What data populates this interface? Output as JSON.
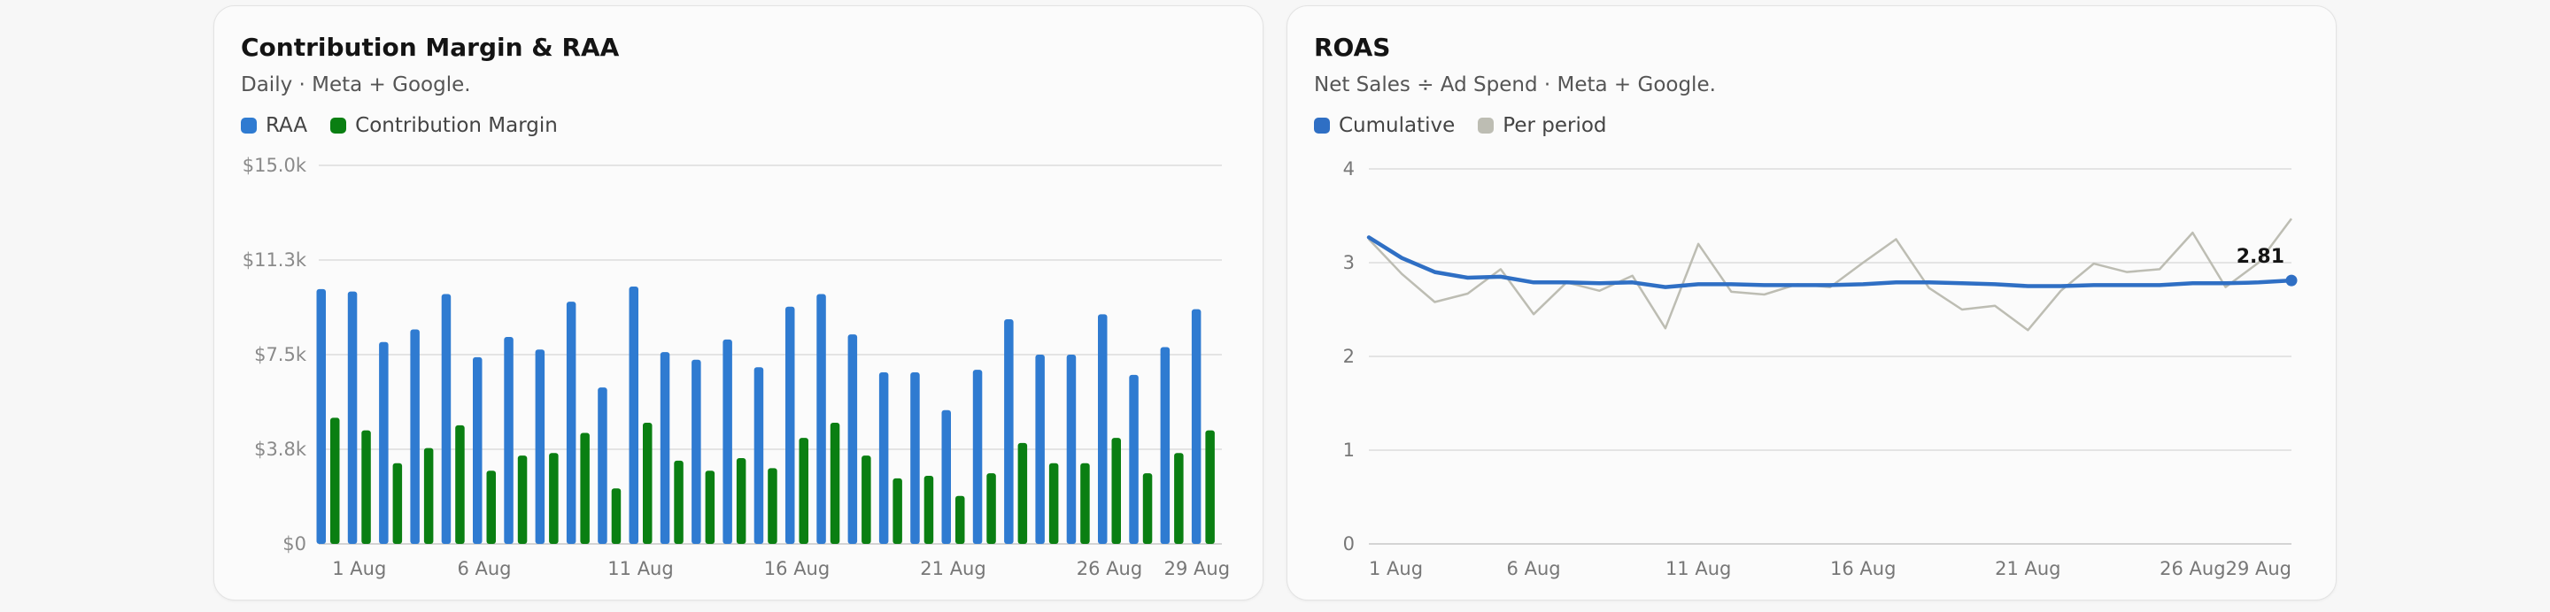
{
  "colors": {
    "raa": "#2f7bd1",
    "contribution_margin": "#0a7f12",
    "cumulative": "#2f6fc4",
    "per_period": "#bdbdb3",
    "grid": "#dcdcdc"
  },
  "chart_data": [
    {
      "type": "bar",
      "title": "Contribution Margin & RAA",
      "subtitle": "Daily · Meta + Google.",
      "legend": {
        "placement": "top-left",
        "entries": [
          "RAA",
          "Contribution Margin"
        ]
      },
      "grid": true,
      "ylim": [
        0,
        15000
      ],
      "yticks": [
        0,
        3750,
        7500,
        11250,
        15000
      ],
      "ytick_labels": [
        "$0",
        "$3.8k",
        "$7.5k",
        "$11.3k",
        "$15.0k"
      ],
      "xtick_labels": [
        {
          "label": "1 Aug",
          "index": 1
        },
        {
          "label": "6 Aug",
          "index": 5
        },
        {
          "label": "11 Aug",
          "index": 10
        },
        {
          "label": "16 Aug",
          "index": 15
        },
        {
          "label": "21 Aug",
          "index": 20
        },
        {
          "label": "26 Aug",
          "index": 25
        },
        {
          "label": "29 Aug",
          "index": 27.8
        }
      ],
      "series": [
        {
          "name": "RAA",
          "values": [
            10100,
            10000,
            8000,
            8500,
            9900,
            7400,
            8200,
            7700,
            9600,
            6200,
            10200,
            7600,
            7300,
            8100,
            7000,
            9400,
            9900,
            8300,
            6800,
            6800,
            5300,
            6900,
            8900,
            7500,
            7500,
            9100,
            6700,
            7800,
            9300
          ]
        },
        {
          "name": "Contribution Margin",
          "values": [
            5000,
            4500,
            3200,
            3800,
            4700,
            2900,
            3500,
            3600,
            4400,
            2200,
            4800,
            3300,
            2900,
            3400,
            3000,
            4200,
            4800,
            3500,
            2600,
            2700,
            1900,
            2800,
            4000,
            3200,
            3200,
            4200,
            2800,
            3600,
            4500
          ]
        }
      ]
    },
    {
      "type": "line",
      "title": "ROAS",
      "subtitle": "Net Sales ÷ Ad Spend · Meta + Google.",
      "legend": {
        "placement": "top-left",
        "entries": [
          "Cumulative",
          "Per period"
        ]
      },
      "grid": true,
      "ylim": [
        0,
        4
      ],
      "yticks": [
        0,
        1,
        2,
        3,
        4
      ],
      "ytick_labels": [
        "0",
        "1",
        "2",
        "3",
        "4"
      ],
      "xtick_labels": [
        {
          "label": "1 Aug",
          "index": 0
        },
        {
          "label": "6 Aug",
          "index": 5
        },
        {
          "label": "11 Aug",
          "index": 10
        },
        {
          "label": "16 Aug",
          "index": 15
        },
        {
          "label": "21 Aug",
          "index": 20
        },
        {
          "label": "26 Aug",
          "index": 25
        },
        {
          "label": "29 Aug",
          "index": 28
        }
      ],
      "annotation": "2.81",
      "series": [
        {
          "name": "Cumulative",
          "values": [
            3.27,
            3.05,
            2.9,
            2.84,
            2.85,
            2.79,
            2.79,
            2.78,
            2.79,
            2.74,
            2.77,
            2.77,
            2.76,
            2.76,
            2.76,
            2.77,
            2.79,
            2.79,
            2.78,
            2.77,
            2.75,
            2.75,
            2.76,
            2.76,
            2.76,
            2.78,
            2.78,
            2.79,
            2.81
          ]
        },
        {
          "name": "Per period",
          "values": [
            3.25,
            2.88,
            2.58,
            2.67,
            2.93,
            2.45,
            2.79,
            2.7,
            2.86,
            2.3,
            3.2,
            2.69,
            2.66,
            2.77,
            2.74,
            3.0,
            3.25,
            2.73,
            2.5,
            2.54,
            2.28,
            2.7,
            2.99,
            2.9,
            2.93,
            3.32,
            2.74,
            3.0,
            3.47
          ]
        }
      ]
    }
  ]
}
